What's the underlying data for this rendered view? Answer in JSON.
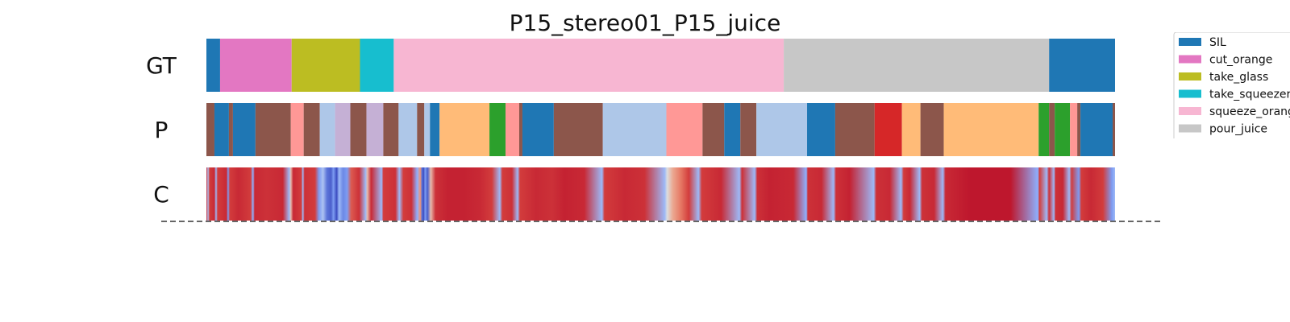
{
  "chart_data": {
    "type": "segmentation",
    "title": "P15_stereo01_P15_juice",
    "xlim": [
      0,
      1130
    ],
    "rows": [
      {
        "label": "GT",
        "segments": [
          {
            "start": 0,
            "end": 17,
            "color": "#1f77b4"
          },
          {
            "start": 17,
            "end": 106,
            "color": "#e377c2"
          },
          {
            "start": 106,
            "end": 191,
            "color": "#bcbd22"
          },
          {
            "start": 191,
            "end": 233,
            "color": "#17becf"
          },
          {
            "start": 233,
            "end": 718,
            "color": "#f7b6d2"
          },
          {
            "start": 718,
            "end": 1048,
            "color": "#c7c7c7"
          },
          {
            "start": 1048,
            "end": 1130,
            "color": "#1f77b4"
          }
        ]
      },
      {
        "label": "P",
        "segments": [
          {
            "start": 0,
            "end": 10,
            "color": "#8c564b"
          },
          {
            "start": 10,
            "end": 28,
            "color": "#1f77b4"
          },
          {
            "start": 28,
            "end": 33,
            "color": "#8c564b"
          },
          {
            "start": 33,
            "end": 61,
            "color": "#1f77b4"
          },
          {
            "start": 61,
            "end": 105,
            "color": "#8c564b"
          },
          {
            "start": 105,
            "end": 121,
            "color": "#ff9896"
          },
          {
            "start": 121,
            "end": 141,
            "color": "#8c564b"
          },
          {
            "start": 141,
            "end": 160,
            "color": "#aec7e8"
          },
          {
            "start": 160,
            "end": 179,
            "color": "#c5b0d5"
          },
          {
            "start": 179,
            "end": 199,
            "color": "#8c564b"
          },
          {
            "start": 199,
            "end": 220,
            "color": "#c5b0d5"
          },
          {
            "start": 220,
            "end": 239,
            "color": "#8c564b"
          },
          {
            "start": 239,
            "end": 262,
            "color": "#aec7e8"
          },
          {
            "start": 262,
            "end": 271,
            "color": "#8c564b"
          },
          {
            "start": 271,
            "end": 278,
            "color": "#aec7e8"
          },
          {
            "start": 278,
            "end": 290,
            "color": "#1f77b4"
          },
          {
            "start": 290,
            "end": 352,
            "color": "#ffbb78"
          },
          {
            "start": 352,
            "end": 372,
            "color": "#2ca02c"
          },
          {
            "start": 372,
            "end": 389,
            "color": "#ff9896"
          },
          {
            "start": 389,
            "end": 393,
            "color": "#8c564b"
          },
          {
            "start": 393,
            "end": 432,
            "color": "#1f77b4"
          },
          {
            "start": 432,
            "end": 493,
            "color": "#8c564b"
          },
          {
            "start": 493,
            "end": 572,
            "color": "#aec7e8"
          },
          {
            "start": 572,
            "end": 617,
            "color": "#ff9896"
          },
          {
            "start": 617,
            "end": 644,
            "color": "#8c564b"
          },
          {
            "start": 644,
            "end": 664,
            "color": "#1f77b4"
          },
          {
            "start": 664,
            "end": 684,
            "color": "#8c564b"
          },
          {
            "start": 684,
            "end": 747,
            "color": "#aec7e8"
          },
          {
            "start": 747,
            "end": 782,
            "color": "#1f77b4"
          },
          {
            "start": 782,
            "end": 831,
            "color": "#8c564b"
          },
          {
            "start": 831,
            "end": 865,
            "color": "#d62728"
          },
          {
            "start": 865,
            "end": 888,
            "color": "#ffbb78"
          },
          {
            "start": 888,
            "end": 917,
            "color": "#8c564b"
          },
          {
            "start": 917,
            "end": 1035,
            "color": "#ffbb78"
          },
          {
            "start": 1035,
            "end": 1048,
            "color": "#2ca02c"
          },
          {
            "start": 1048,
            "end": 1055,
            "color": "#8c564b"
          },
          {
            "start": 1055,
            "end": 1074,
            "color": "#2ca02c"
          },
          {
            "start": 1074,
            "end": 1083,
            "color": "#ff9896"
          },
          {
            "start": 1083,
            "end": 1087,
            "color": "#8c564b"
          },
          {
            "start": 1087,
            "end": 1127,
            "color": "#1f77b4"
          },
          {
            "start": 1127,
            "end": 1130,
            "color": "#8c564b"
          }
        ]
      },
      {
        "label": "C",
        "confidence": [
          [
            0,
            0.9
          ],
          [
            2,
            0.35
          ],
          [
            4,
            0.85
          ],
          [
            10,
            0.9
          ],
          [
            12,
            0.3
          ],
          [
            14,
            0.85
          ],
          [
            25,
            0.9
          ],
          [
            27,
            0.2
          ],
          [
            29,
            0.85
          ],
          [
            40,
            0.9
          ],
          [
            55,
            0.85
          ],
          [
            58,
            0.25
          ],
          [
            60,
            0.9
          ],
          [
            75,
            0.88
          ],
          [
            95,
            0.9
          ],
          [
            103,
            0.3
          ],
          [
            105,
            0.6
          ],
          [
            108,
            0.9
          ],
          [
            118,
            0.85
          ],
          [
            120,
            0.3
          ],
          [
            122,
            0.88
          ],
          [
            135,
            0.85
          ],
          [
            140,
            0.2
          ],
          [
            145,
            0.35
          ],
          [
            150,
            0.1
          ],
          [
            155,
            0.05
          ],
          [
            158,
            0.2
          ],
          [
            162,
            0.0
          ],
          [
            165,
            0.3
          ],
          [
            170,
            0.15
          ],
          [
            175,
            0.2
          ],
          [
            180,
            0.8
          ],
          [
            190,
            0.88
          ],
          [
            198,
            0.3
          ],
          [
            200,
            0.6
          ],
          [
            205,
            0.9
          ],
          [
            218,
            0.3
          ],
          [
            220,
            0.85
          ],
          [
            235,
            0.88
          ],
          [
            240,
            0.3
          ],
          [
            245,
            0.85
          ],
          [
            255,
            0.88
          ],
          [
            262,
            0.25
          ],
          [
            266,
            0.7
          ],
          [
            268,
            0.1
          ],
          [
            270,
            0.0
          ],
          [
            272,
            0.2
          ],
          [
            275,
            0.05
          ],
          [
            279,
            0.6
          ],
          [
            285,
            0.88
          ],
          [
            300,
            0.92
          ],
          [
            320,
            0.92
          ],
          [
            340,
            0.9
          ],
          [
            355,
            0.85
          ],
          [
            365,
            0.3
          ],
          [
            368,
            0.85
          ],
          [
            380,
            0.88
          ],
          [
            387,
            0.3
          ],
          [
            390,
            0.85
          ],
          [
            410,
            0.9
          ],
          [
            430,
            0.88
          ],
          [
            445,
            0.92
          ],
          [
            470,
            0.9
          ],
          [
            492,
            0.3
          ],
          [
            495,
            0.85
          ],
          [
            520,
            0.9
          ],
          [
            545,
            0.88
          ],
          [
            570,
            0.3
          ],
          [
            573,
            0.5
          ],
          [
            580,
            0.65
          ],
          [
            590,
            0.75
          ],
          [
            600,
            0.85
          ],
          [
            612,
            0.3
          ],
          [
            616,
            0.85
          ],
          [
            640,
            0.9
          ],
          [
            663,
            0.3
          ],
          [
            666,
            0.88
          ],
          [
            682,
            0.3
          ],
          [
            685,
            0.88
          ],
          [
            700,
            0.92
          ],
          [
            730,
            0.9
          ],
          [
            746,
            0.25
          ],
          [
            748,
            0.88
          ],
          [
            765,
            0.9
          ],
          [
            780,
            0.3
          ],
          [
            783,
            0.88
          ],
          [
            800,
            0.92
          ],
          [
            830,
            0.3
          ],
          [
            833,
            0.88
          ],
          [
            850,
            0.9
          ],
          [
            864,
            0.3
          ],
          [
            867,
            0.85
          ],
          [
            875,
            0.9
          ],
          [
            887,
            0.3
          ],
          [
            890,
            0.88
          ],
          [
            905,
            0.9
          ],
          [
            916,
            0.3
          ],
          [
            919,
            0.9
          ],
          [
            950,
            0.95
          ],
          [
            1000,
            0.95
          ],
          [
            1034,
            0.25
          ],
          [
            1036,
            0.85
          ],
          [
            1045,
            0.3
          ],
          [
            1048,
            0.88
          ],
          [
            1054,
            0.3
          ],
          [
            1056,
            0.88
          ],
          [
            1065,
            0.9
          ],
          [
            1073,
            0.3
          ],
          [
            1076,
            0.85
          ],
          [
            1085,
            0.2
          ],
          [
            1088,
            0.85
          ],
          [
            1100,
            0.9
          ],
          [
            1115,
            0.85
          ],
          [
            1126,
            0.2
          ],
          [
            1130,
            0.3
          ]
        ]
      }
    ],
    "legend": {
      "placement": "top-right",
      "entries": [
        {
          "label": "SIL",
          "color": "#1f77b4"
        },
        {
          "label": "cut_orange",
          "color": "#e377c2"
        },
        {
          "label": "take_glass",
          "color": "#bcbd22"
        },
        {
          "label": "take_squeezer",
          "color": "#17becf"
        },
        {
          "label": "squeeze_orange",
          "color": "#f7b6d2"
        },
        {
          "label": "pour_juice",
          "color": "#c7c7c7"
        }
      ]
    }
  }
}
